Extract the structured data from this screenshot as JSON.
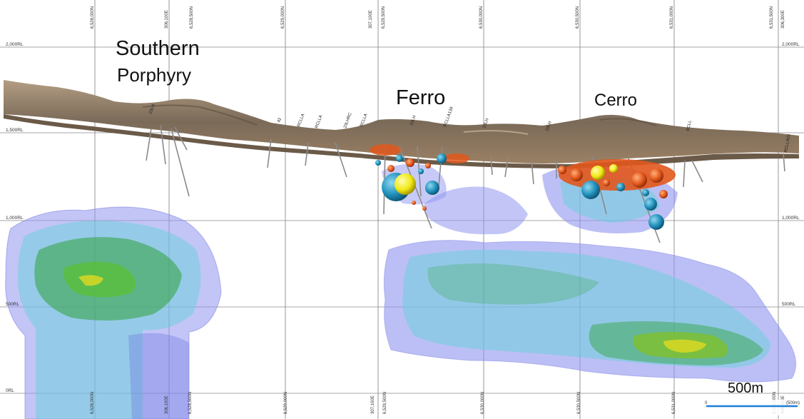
{
  "zones": {
    "southern_line1": "Southern",
    "southern_line2": "Porphyry",
    "ferro": "Ferro",
    "cerro": "Cerro"
  },
  "rl_labels": {
    "rl2000": "2,000RL",
    "rl1500": "1,500RL",
    "rl1000": "1,000RL",
    "rl500": "500RL",
    "rl0": "0RL"
  },
  "top_ticks": {
    "t1": "6,528,000N",
    "t2": "306,100E",
    "t3": "6,528,500N",
    "t4": "6,529,000N",
    "t5": "307,100E",
    "t6": "6,529,500N",
    "t7": "6,530,000N",
    "t8": "6,530,500N",
    "t9": "6,531,000N",
    "t10": "6,531,500N",
    "t11": "306,300E"
  },
  "bottom_ticks": {
    "b1": "6,528,000N",
    "b2": "306,100E",
    "b3": "6,528,500N",
    "b4": "6,529,000N",
    "b5": "307,100E",
    "b6": "6,529,500N",
    "b7": "6,530,000N",
    "b8": "6,530,500N",
    "b9": "6,531,000N",
    "b10": "6,531,500N",
    "b11": "306,300E"
  },
  "hole_labels": [
    "23LH",
    "42",
    "RCLLA",
    "RCLLA",
    "23LHRC",
    "RCLLA",
    "23LH",
    "RCLLA139",
    "23LH",
    "22LH",
    "RCLL",
    "RCLLA03"
  ],
  "scale_bar": {
    "label": "500m",
    "zero": "0",
    "end": "(500m)"
  },
  "colors": {
    "terrain": "#8b7358",
    "shell_blue": "#8f95ef",
    "shell_cyan": "#5fd3d6",
    "core_green": "#2fa23a",
    "core_yellow": "#d9d823",
    "ball_blue": "#1f8fb9",
    "ball_yellow": "#f1ea16",
    "ball_orange": "#e2571c"
  }
}
